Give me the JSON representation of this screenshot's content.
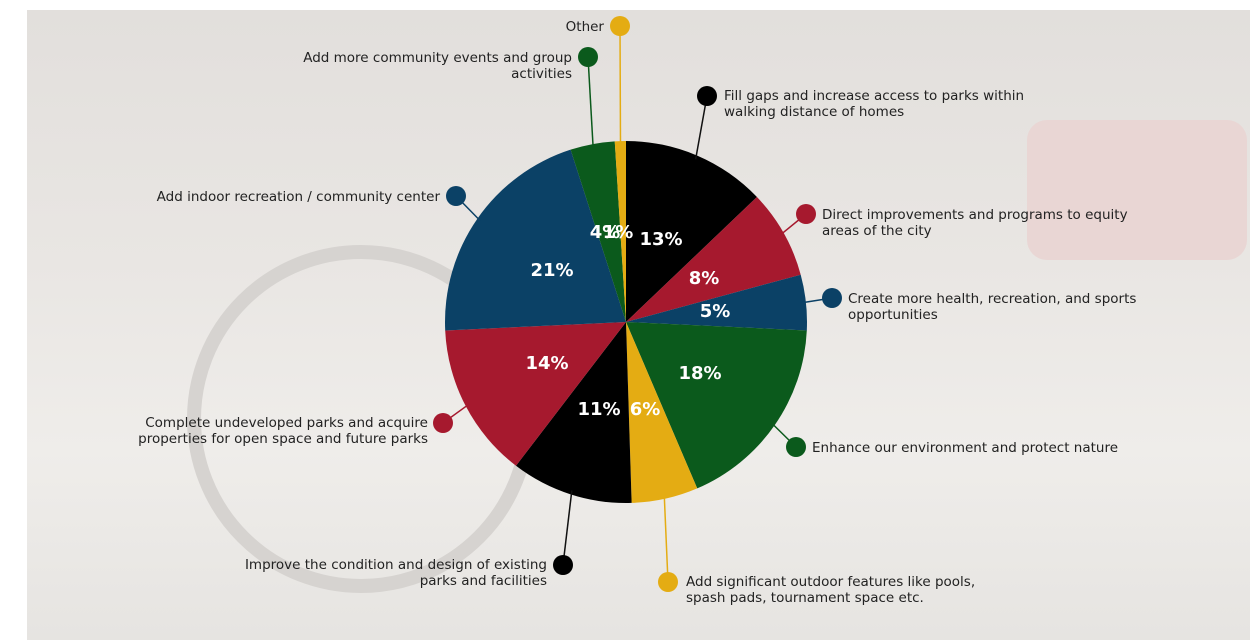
{
  "chart_data": {
    "type": "pie",
    "categories": [
      "Fill gaps and increase access to parks within walking distance of homes",
      "Direct improvements and programs to equity areas of the city",
      "Create more health, recreation, and sports opportunities",
      "Enhance our environment and protect nature",
      "Add significant outdoor features like pools, spash pads, tournament space etc.",
      "Improve the condition and design of existing parks and facilities",
      "Complete undeveloped parks and acquire properties for open space and future parks",
      "Add indoor recreation / community center",
      "Add more community events and group activities",
      "Other"
    ],
    "values": [
      13,
      8,
      5,
      18,
      6,
      11,
      14,
      21,
      4,
      1
    ],
    "value_labels": [
      "13%",
      "8%",
      "5%",
      "18%",
      "6%",
      "11%",
      "14%",
      "21%",
      "4%",
      "1%"
    ],
    "colors": [
      "#000000",
      "#a6192e",
      "#0b4166",
      "#0b5a1c",
      "#e4ac13",
      "#000000",
      "#a6192e",
      "#0b4166",
      "#0b5a1c",
      "#e4ac13"
    ]
  }
}
